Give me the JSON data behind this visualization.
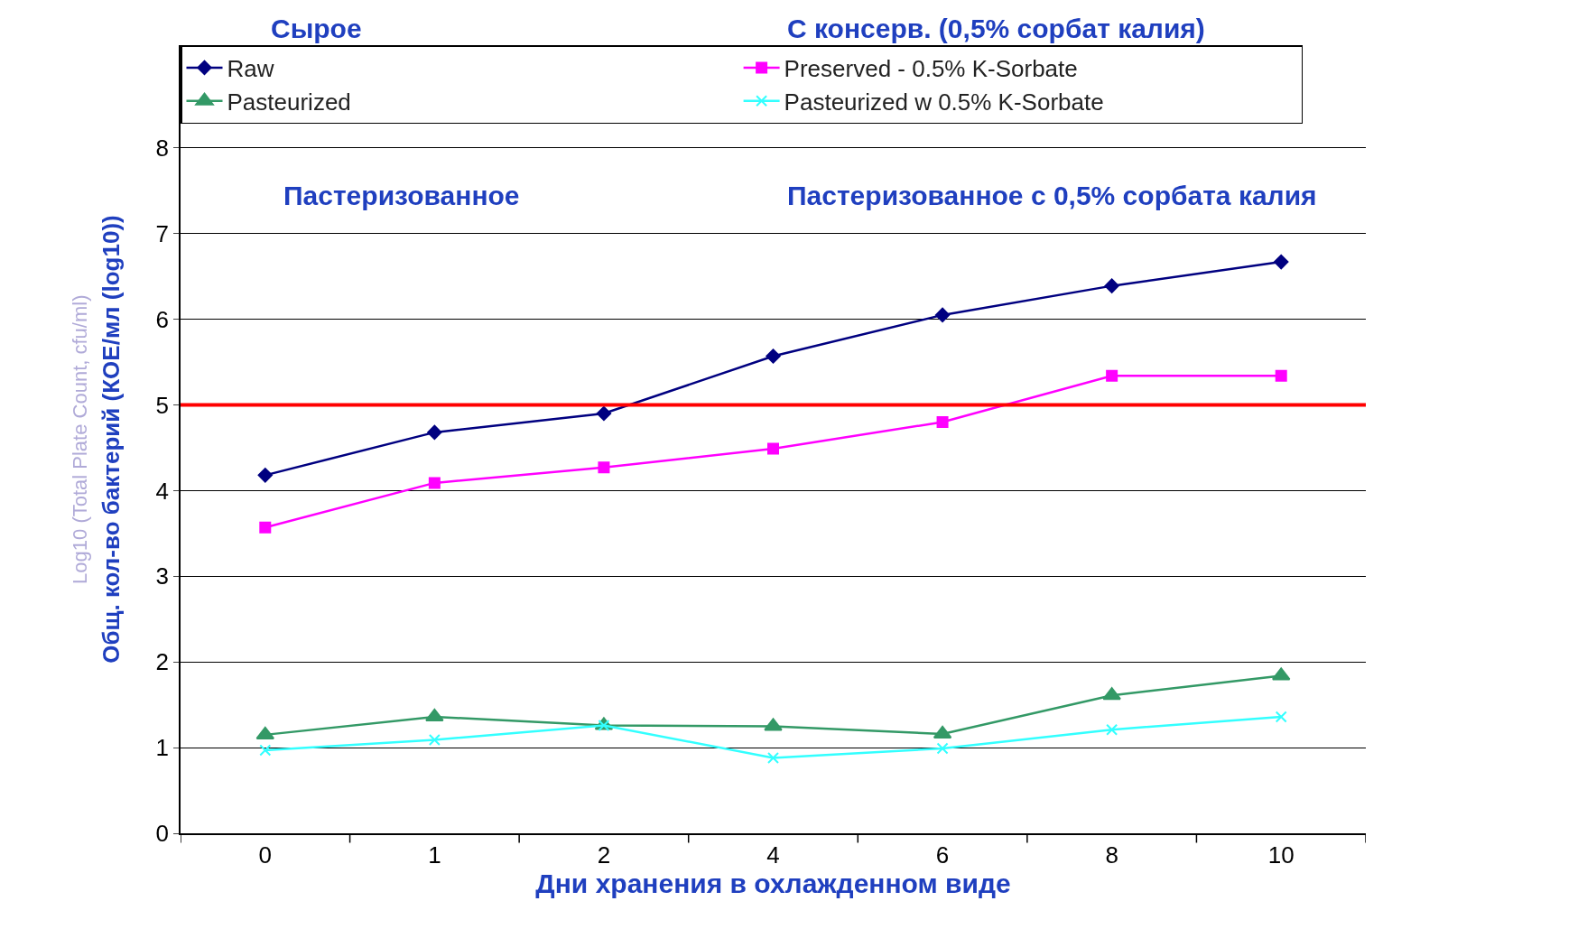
{
  "chart_data": {
    "type": "line",
    "xlabel": "Дни хранения в охлажденном виде",
    "ylabel": "Общ. кол-во бактерий (КОЕ/мл (log10))",
    "categories": [
      "0",
      "1",
      "2",
      "4",
      "6",
      "8",
      "10"
    ],
    "series": [
      {
        "name": "Raw",
        "color": "#000080",
        "marker": "diamond",
        "values": [
          4.18,
          4.68,
          4.9,
          5.57,
          6.05,
          6.39,
          6.67
        ]
      },
      {
        "name": "Preserved - 0.5% K-Sorbate",
        "color": "#ff00ff",
        "marker": "square",
        "values": [
          3.57,
          4.09,
          4.27,
          4.49,
          4.8,
          5.34,
          5.34
        ]
      },
      {
        "name": "Pasteurized",
        "color": "#339966",
        "marker": "triangle",
        "values": [
          1.15,
          1.36,
          1.26,
          1.25,
          1.16,
          1.61,
          1.84
        ]
      },
      {
        "name": "Pasteurized w 0.5% K-Sorbate",
        "color": "#33ffff",
        "marker": "cross",
        "values": [
          0.97,
          1.09,
          1.26,
          0.88,
          0.99,
          1.21,
          1.36
        ]
      }
    ],
    "ylim": [
      0,
      9.2
    ],
    "yticks": [
      0,
      1,
      2,
      3,
      4,
      5,
      6,
      7,
      8
    ],
    "grid": "y",
    "legend": "top",
    "ref_lines": [
      {
        "axis": "y",
        "value": 5,
        "color": "#ff0000"
      }
    ],
    "annotations": [
      "Сырое",
      "С консерв. (0,5% сорбат калия)",
      "Пастеризованное",
      "Пастеризованное с 0,5% сорбата калия",
      "Log10 (Total Plate Count, cfu/ml)"
    ]
  }
}
